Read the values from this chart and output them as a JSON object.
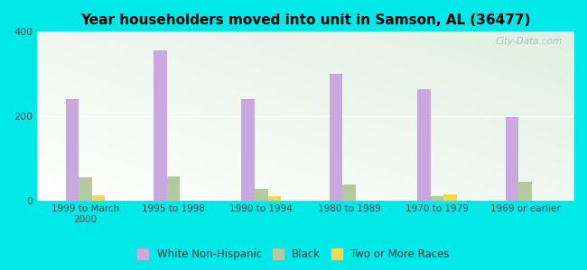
{
  "title": "Year householders moved into unit in Samson, AL (36477)",
  "categories": [
    "1999 to March\n2000",
    "1995 to 1998",
    "1990 to 1994",
    "1980 to 1989",
    "1970 to 1979",
    "1969 or earlier"
  ],
  "white_non_hispanic": [
    240,
    355,
    240,
    300,
    265,
    198
  ],
  "black": [
    55,
    57,
    27,
    38,
    10,
    43
  ],
  "two_or_more_races": [
    12,
    0,
    10,
    0,
    15,
    0
  ],
  "colors": {
    "white_non_hispanic": "#c9a8e0",
    "black": "#b5c9a0",
    "two_or_more_races": "#f0d855"
  },
  "ylim": [
    0,
    400
  ],
  "yticks": [
    0,
    200,
    400
  ],
  "background_color": "#00e8e8",
  "watermark": "City-Data.com",
  "bar_width": 0.15
}
